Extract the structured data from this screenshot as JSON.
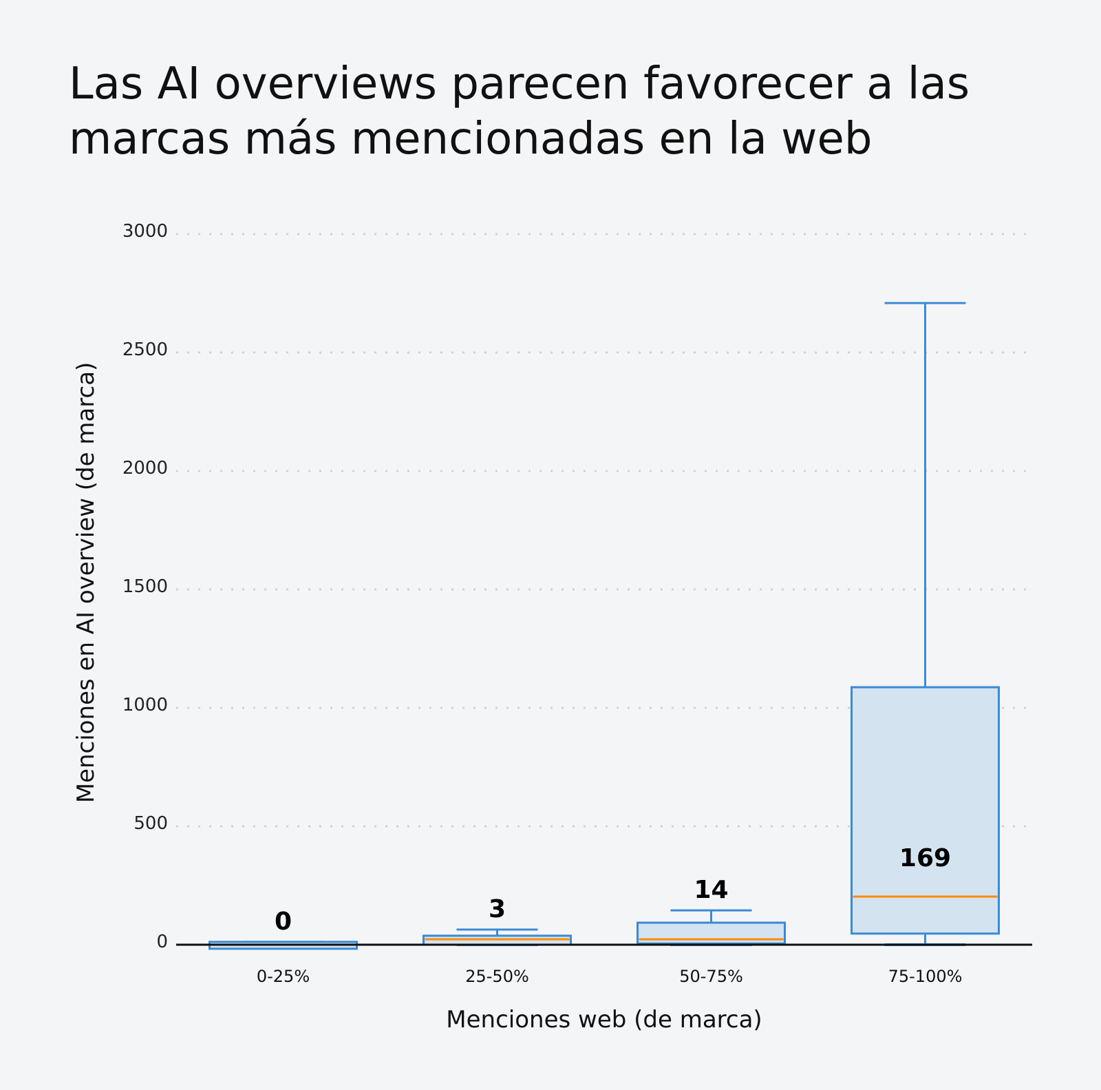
{
  "chart_data": {
    "type": "box",
    "title": "Las AI overviews parecen favorecer a las marcas más mencionadas en la web",
    "xlabel": "Menciones web (de marca)",
    "ylabel": "Menciones en AI overview (de marca)",
    "ylim": [
      0,
      3000
    ],
    "yticks": [
      0,
      500,
      1000,
      1500,
      2000,
      2500,
      3000
    ],
    "grid": "horizontal dotted",
    "categories": [
      "0-25%",
      "25-50%",
      "50-75%",
      "75-100%"
    ],
    "boxes": [
      {
        "category": "0-25%",
        "whisker_low": 0,
        "q1": 0,
        "median": 0,
        "q3": 12,
        "whisker_high": 12,
        "label": "0"
      },
      {
        "category": "25-50%",
        "whisker_low": 0,
        "q1": 0,
        "median": 23,
        "q3": 38,
        "whisker_high": 64,
        "label": "3"
      },
      {
        "category": "50-75%",
        "whisker_low": 0,
        "q1": 5,
        "median": 23,
        "q3": 93,
        "whisker_high": 145,
        "label": "14"
      },
      {
        "category": "75-100%",
        "whisker_low": 0,
        "q1": 47,
        "median": 203,
        "q3": 1087,
        "whisker_high": 2709,
        "label": "169"
      }
    ],
    "colors": {
      "box_edge": "#3a8ad6",
      "box_fill": "#d3e3f0",
      "median": "#ff8a00",
      "axis": "#111111",
      "grid": "#cfd2d6"
    }
  }
}
